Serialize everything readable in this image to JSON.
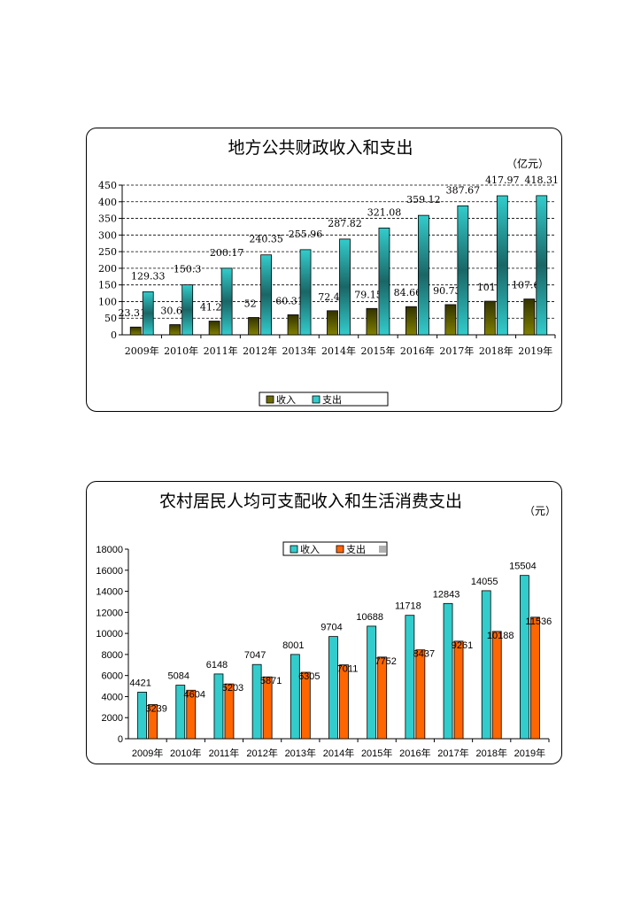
{
  "chart_data": [
    {
      "type": "bar",
      "title": "地方公共财政收入和支出",
      "unit": "（亿元）",
      "categories": [
        "2009年",
        "2010年",
        "2011年",
        "2012年",
        "2013年",
        "2014年",
        "2015年",
        "2016年",
        "2017年",
        "2018年",
        "2019年"
      ],
      "series": [
        {
          "name": "收入",
          "color": "#6b6b00",
          "values": [
            23.31,
            30.6,
            41.2,
            52.0,
            60.31,
            72.4,
            79.15,
            84.66,
            90.73,
            101,
            107.6
          ]
        },
        {
          "name": "支出",
          "color": "#33cccc",
          "values": [
            129.33,
            150.3,
            200.17,
            240.35,
            255.96,
            287.82,
            321.08,
            359.12,
            387.67,
            417.97,
            418.31
          ]
        }
      ],
      "ylim": [
        0,
        450
      ],
      "yticks": [
        0,
        50,
        100,
        150,
        200,
        250,
        300,
        350,
        400,
        450
      ],
      "grid": true,
      "legend": "bottom"
    },
    {
      "type": "bar",
      "title": "农村居民人均可支配收入和生活消费支出",
      "unit": "（元）",
      "categories": [
        "2009年",
        "2010年",
        "2011年",
        "2012年",
        "2013年",
        "2014年",
        "2015年",
        "2016年",
        "2017年",
        "2018年",
        "2019年"
      ],
      "series": [
        {
          "name": "收入",
          "color": "#33cccc",
          "values": [
            4421,
            5084,
            6148,
            7047,
            8001,
            9704,
            10688,
            11718,
            12843,
            14055,
            15504
          ]
        },
        {
          "name": "支出",
          "color": "#ff6600",
          "values": [
            3239,
            4604,
            5203,
            5871,
            6305,
            7011,
            7752,
            8437,
            9261,
            10188,
            11536
          ]
        }
      ],
      "legend_extra_color": "#b0b0b0",
      "ylim": [
        0,
        18000
      ],
      "yticks": [
        0,
        2000,
        4000,
        6000,
        8000,
        10000,
        12000,
        14000,
        16000,
        18000
      ],
      "grid": false,
      "legend": "top"
    }
  ]
}
